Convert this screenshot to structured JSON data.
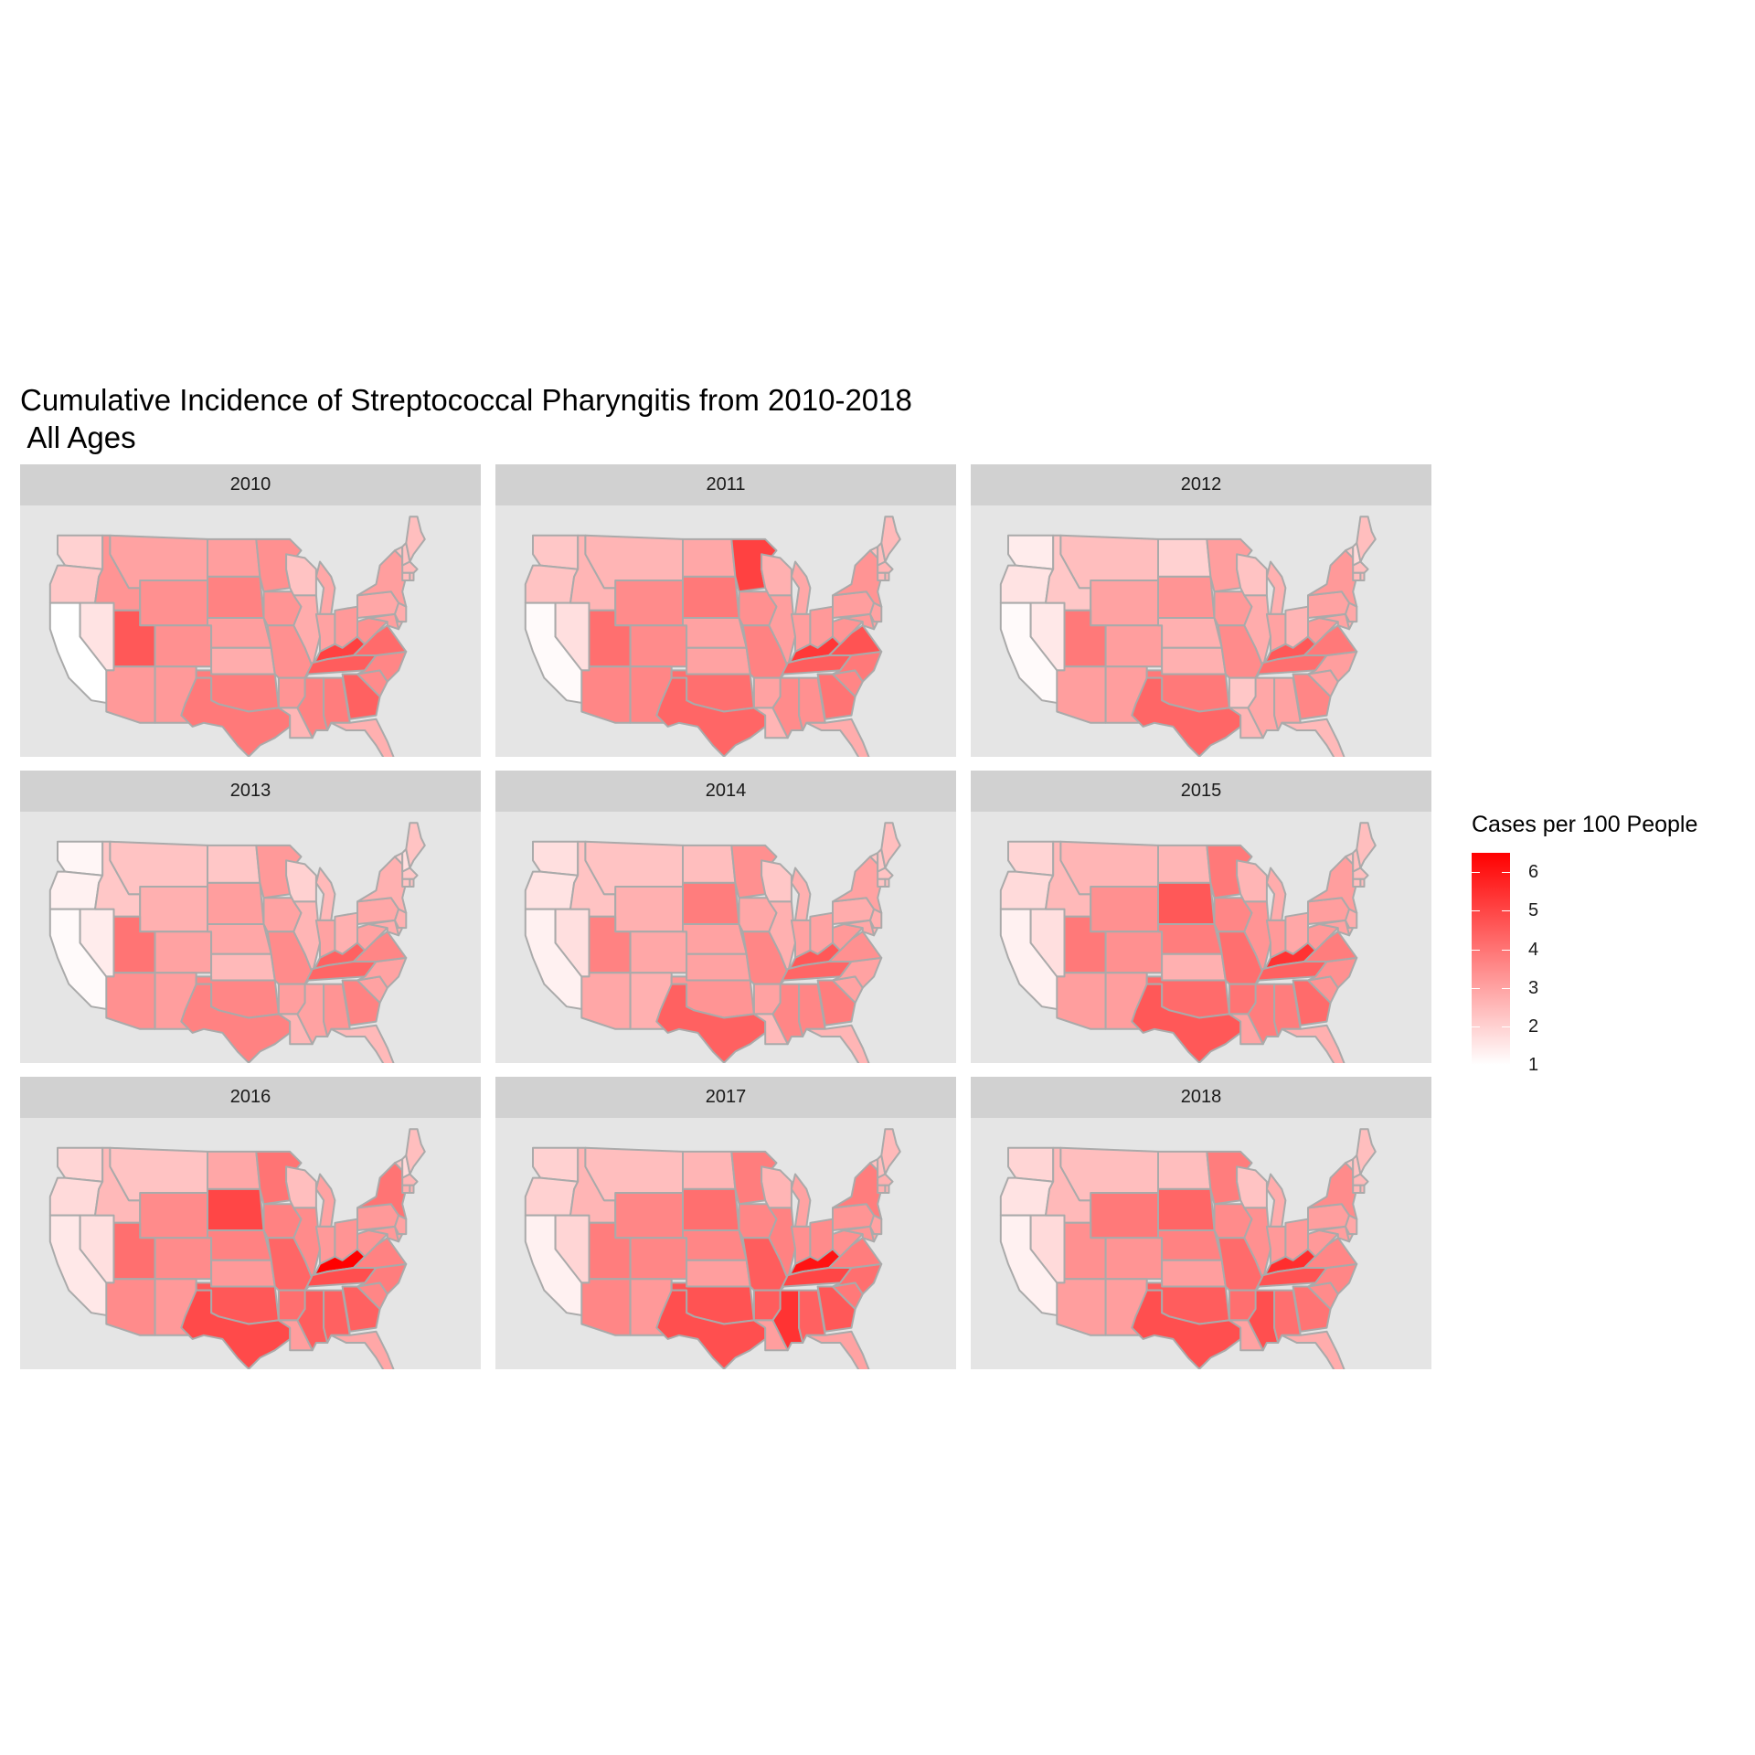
{
  "chart_data": {
    "type": "choropleth map",
    "title": "Cumulative Incidence of Streptococcal Pharyngitis from 2010-2018\n All Ages",
    "legend": {
      "title": "Cases per 100 People",
      "placement": "right",
      "min": 1,
      "max": 6.5,
      "ticks": [
        1,
        2,
        3,
        4,
        5,
        6
      ],
      "low_color": "#ffffff",
      "high_color": "#ff0000"
    },
    "border_color": "#aaaaaa",
    "panel_background": "#e5e5e5",
    "strip_background": "#d1d1d1",
    "facet_layout": "3x3",
    "facets": [
      {
        "label": "2010",
        "values": {
          "WA": 2.0,
          "OR": 2.2,
          "CA": 1.0,
          "NV": 1.6,
          "ID": 3.3,
          "MT": 3.0,
          "WY": 3.4,
          "UT": 4.6,
          "CO": 3.4,
          "AZ": 3.2,
          "NM": 3.2,
          "ND": 3.1,
          "SD": 3.7,
          "NE": 3.1,
          "KS": 2.8,
          "OK": 3.8,
          "TX": 3.9,
          "MN": 3.4,
          "IA": 3.3,
          "MO": 3.4,
          "AR": 3.3,
          "LA": 2.6,
          "WI": 2.3,
          "IL": 2.8,
          "MI": 2.9,
          "IN": 3.0,
          "OH": 3.2,
          "KY": 5.1,
          "TN": 4.5,
          "MS": 3.7,
          "AL": 3.8,
          "GA": 4.4,
          "FL": 2.7,
          "SC": 3.5,
          "NC": 3.6,
          "VA": 4.2,
          "WV": 3.4,
          "PA": 2.9,
          "NY": 3.1,
          "ME": 2.4,
          "VT": 2.3,
          "NH": 2.3,
          "MA": 2.5,
          "CT": 2.4,
          "RI": 2.4,
          "NJ": 2.8,
          "DE": 2.8,
          "MD": 3.1
        }
      },
      {
        "label": "2011",
        "values": {
          "WA": 2.2,
          "OR": 2.3,
          "CA": 1.1,
          "NV": 1.7,
          "ID": 2.6,
          "MT": 2.6,
          "WY": 3.5,
          "UT": 4.1,
          "CO": 3.5,
          "AZ": 3.6,
          "NM": 3.6,
          "ND": 2.9,
          "SD": 3.9,
          "NE": 3.0,
          "KS": 3.0,
          "OK": 4.1,
          "TX": 4.3,
          "MN": 5.1,
          "IA": 3.4,
          "MO": 3.7,
          "AR": 3.0,
          "LA": 2.6,
          "WI": 2.7,
          "IL": 3.1,
          "MI": 2.9,
          "IN": 3.1,
          "OH": 3.2,
          "KY": 5.3,
          "TN": 4.5,
          "MS": 3.5,
          "AL": 3.4,
          "GA": 4.0,
          "FL": 2.8,
          "SC": 3.6,
          "NC": 3.9,
          "VA": 4.7,
          "WV": 3.3,
          "PA": 3.1,
          "NY": 3.3,
          "ME": 2.5,
          "VT": 2.4,
          "NH": 2.4,
          "MA": 2.6,
          "CT": 2.5,
          "RI": 2.5,
          "NJ": 3.0,
          "DE": 3.0,
          "MD": 3.2
        }
      },
      {
        "label": "2012",
        "values": {
          "WA": 1.4,
          "OR": 1.6,
          "CA": 1.1,
          "NV": 1.5,
          "ID": 2.2,
          "MT": 2.4,
          "WY": 3.0,
          "UT": 3.9,
          "CO": 3.1,
          "AZ": 3.1,
          "NM": 3.1,
          "ND": 2.0,
          "SD": 3.3,
          "NE": 2.7,
          "KS": 2.7,
          "OK": 3.9,
          "TX": 4.3,
          "MN": 3.1,
          "IA": 3.2,
          "MO": 3.5,
          "AR": 2.2,
          "LA": 2.6,
          "WI": 2.3,
          "IL": 2.8,
          "MI": 2.7,
          "IN": 3.0,
          "OH": 2.6,
          "KY": 4.6,
          "TN": 4.1,
          "MS": 2.9,
          "AL": 3.0,
          "GA": 3.6,
          "FL": 2.5,
          "SC": 3.0,
          "NC": 3.1,
          "VA": 3.9,
          "WV": 3.2,
          "PA": 3.0,
          "NY": 3.2,
          "ME": 2.4,
          "VT": 2.2,
          "NH": 1.8,
          "MA": 2.4,
          "CT": 2.4,
          "RI": 2.4,
          "NJ": 2.9,
          "DE": 2.8,
          "MD": 3.0
        }
      },
      {
        "label": "2013",
        "values": {
          "WA": 1.2,
          "OR": 1.3,
          "CA": 1.1,
          "NV": 1.4,
          "ID": 2.2,
          "MT": 2.3,
          "WY": 2.7,
          "UT": 4.0,
          "CO": 3.0,
          "AZ": 3.4,
          "NM": 3.1,
          "ND": 2.2,
          "SD": 3.1,
          "NE": 2.9,
          "KS": 2.5,
          "OK": 3.6,
          "TX": 3.7,
          "MN": 3.2,
          "IA": 3.0,
          "MO": 3.5,
          "AR": 3.1,
          "LA": 2.6,
          "WI": 2.0,
          "IL": 2.6,
          "MI": 2.5,
          "IN": 3.0,
          "OH": 2.7,
          "KY": 4.4,
          "TN": 4.3,
          "MS": 3.0,
          "AL": 3.3,
          "GA": 3.7,
          "FL": 2.5,
          "SC": 3.0,
          "NC": 3.0,
          "VA": 3.6,
          "WV": 3.0,
          "PA": 2.9,
          "NY": 2.7,
          "ME": 2.3,
          "VT": 2.0,
          "NH": 1.7,
          "MA": 2.2,
          "CT": 2.3,
          "RI": 2.3,
          "NJ": 2.7,
          "DE": 2.6,
          "MD": 2.8
        }
      },
      {
        "label": "2014",
        "values": {
          "WA": 1.7,
          "OR": 1.6,
          "CA": 1.3,
          "NV": 1.7,
          "ID": 2.3,
          "MT": 2.3,
          "WY": 2.7,
          "UT": 3.7,
          "CO": 2.9,
          "AZ": 2.9,
          "NM": 2.7,
          "ND": 2.4,
          "SD": 3.8,
          "NE": 3.0,
          "KS": 3.0,
          "OK": 3.3,
          "TX": 4.4,
          "MN": 3.4,
          "IA": 2.9,
          "MO": 3.6,
          "AR": 3.0,
          "LA": 2.5,
          "WI": 2.2,
          "IL": 2.7,
          "MI": 2.7,
          "IN": 3.0,
          "OH": 3.0,
          "KY": 4.6,
          "TN": 4.3,
          "MS": 3.6,
          "AL": 3.6,
          "GA": 3.8,
          "FL": 2.6,
          "SC": 3.0,
          "NC": 3.0,
          "VA": 3.4,
          "WV": 3.2,
          "PA": 2.8,
          "NY": 3.0,
          "ME": 2.4,
          "VT": 2.3,
          "NH": 2.2,
          "MA": 2.3,
          "CT": 2.3,
          "RI": 2.3,
          "NJ": 2.7,
          "DE": 2.7,
          "MD": 2.9
        }
      },
      {
        "label": "2015",
        "values": {
          "WA": 1.9,
          "OR": 1.8,
          "CA": 1.3,
          "NV": 1.7,
          "ID": 2.5,
          "MT": 2.6,
          "WY": 3.4,
          "UT": 3.9,
          "CO": 3.4,
          "AZ": 3.1,
          "NM": 3.1,
          "ND": 2.6,
          "SD": 4.6,
          "NE": 3.8,
          "KS": 2.7,
          "OK": 4.2,
          "TX": 4.6,
          "MN": 3.9,
          "IA": 3.6,
          "MO": 4.1,
          "AR": 4.0,
          "LA": 3.0,
          "WI": 2.6,
          "IL": 3.3,
          "MI": 2.8,
          "IN": 3.2,
          "OH": 2.9,
          "KY": 5.4,
          "TN": 4.4,
          "MS": 3.8,
          "AL": 3.8,
          "GA": 4.2,
          "FL": 2.7,
          "SC": 3.3,
          "NC": 3.4,
          "VA": 3.8,
          "WV": 3.2,
          "PA": 3.1,
          "NY": 3.1,
          "ME": 2.4,
          "VT": 2.3,
          "NH": 2.4,
          "MA": 2.4,
          "CT": 2.4,
          "RI": 2.4,
          "NJ": 2.8,
          "DE": 2.8,
          "MD": 3.0
        }
      },
      {
        "label": "2016",
        "values": {
          "WA": 1.9,
          "OR": 1.8,
          "CA": 1.5,
          "NV": 1.7,
          "ID": 2.5,
          "MT": 2.3,
          "WY": 3.5,
          "UT": 4.1,
          "CO": 3.5,
          "AZ": 3.5,
          "NM": 3.2,
          "ND": 2.9,
          "SD": 5.0,
          "NE": 3.7,
          "KS": 3.2,
          "OK": 4.6,
          "TX": 4.9,
          "MN": 4.0,
          "IA": 3.7,
          "MO": 4.3,
          "AR": 4.1,
          "LA": 3.1,
          "WI": 2.4,
          "IL": 3.5,
          "MI": 3.0,
          "IN": 3.2,
          "OH": 3.3,
          "KY": 6.5,
          "TN": 4.8,
          "MS": 4.5,
          "AL": 4.4,
          "GA": 4.4,
          "FL": 2.9,
          "SC": 3.6,
          "NC": 3.8,
          "VA": 3.7,
          "WV": 3.3,
          "PA": 3.2,
          "NY": 4.0,
          "ME": 2.4,
          "VT": 2.3,
          "NH": 1.8,
          "MA": 2.6,
          "CT": 2.7,
          "RI": 2.6,
          "NJ": 3.0,
          "DE": 3.0,
          "MD": 3.2
        }
      },
      {
        "label": "2017",
        "values": {
          "WA": 2.0,
          "OR": 2.0,
          "CA": 1.3,
          "NV": 1.9,
          "ID": 2.6,
          "MT": 2.4,
          "WY": 3.6,
          "UT": 3.8,
          "CO": 3.6,
          "AZ": 3.6,
          "NM": 3.2,
          "ND": 2.6,
          "SD": 4.1,
          "NE": 3.6,
          "KS": 3.1,
          "OK": 4.7,
          "TX": 4.8,
          "MN": 3.8,
          "IA": 3.6,
          "MO": 4.5,
          "AR": 4.5,
          "LA": 3.1,
          "WI": 2.6,
          "IL": 3.7,
          "MI": 3.0,
          "IN": 3.4,
          "OH": 3.5,
          "KY": 6.1,
          "TN": 5.0,
          "MS": 5.4,
          "AL": 4.4,
          "GA": 4.6,
          "FL": 3.0,
          "SC": 3.9,
          "NC": 4.1,
          "VA": 3.8,
          "WV": 3.4,
          "PA": 3.3,
          "NY": 3.8,
          "ME": 2.5,
          "VT": 2.4,
          "NH": 2.4,
          "MA": 2.7,
          "CT": 2.7,
          "RI": 2.6,
          "NJ": 3.0,
          "DE": 3.0,
          "MD": 3.3
        }
      },
      {
        "label": "2018",
        "values": {
          "WA": 1.9,
          "OR": 1.6,
          "CA": 1.3,
          "NV": 1.8,
          "ID": 2.5,
          "MT": 2.4,
          "WY": 3.9,
          "UT": 3.4,
          "CO": 3.3,
          "AZ": 3.1,
          "NM": 3.1,
          "ND": 2.4,
          "SD": 4.3,
          "NE": 3.7,
          "KS": 3.1,
          "OK": 4.5,
          "TX": 4.8,
          "MN": 3.8,
          "IA": 3.5,
          "MO": 4.2,
          "AR": 4.1,
          "LA": 3.0,
          "WI": 2.3,
          "IL": 3.4,
          "MI": 2.8,
          "IN": 3.2,
          "OH": 3.2,
          "KY": 5.5,
          "TN": 4.7,
          "MS": 4.8,
          "AL": 4.1,
          "GA": 4.0,
          "FL": 2.8,
          "SC": 3.5,
          "NC": 3.6,
          "VA": 3.6,
          "WV": 3.2,
          "PA": 3.1,
          "NY": 3.5,
          "ME": 2.4,
          "VT": 2.3,
          "NH": 2.3,
          "MA": 2.5,
          "CT": 2.5,
          "RI": 2.5,
          "NJ": 2.9,
          "DE": 2.9,
          "MD": 3.1
        }
      }
    ]
  }
}
